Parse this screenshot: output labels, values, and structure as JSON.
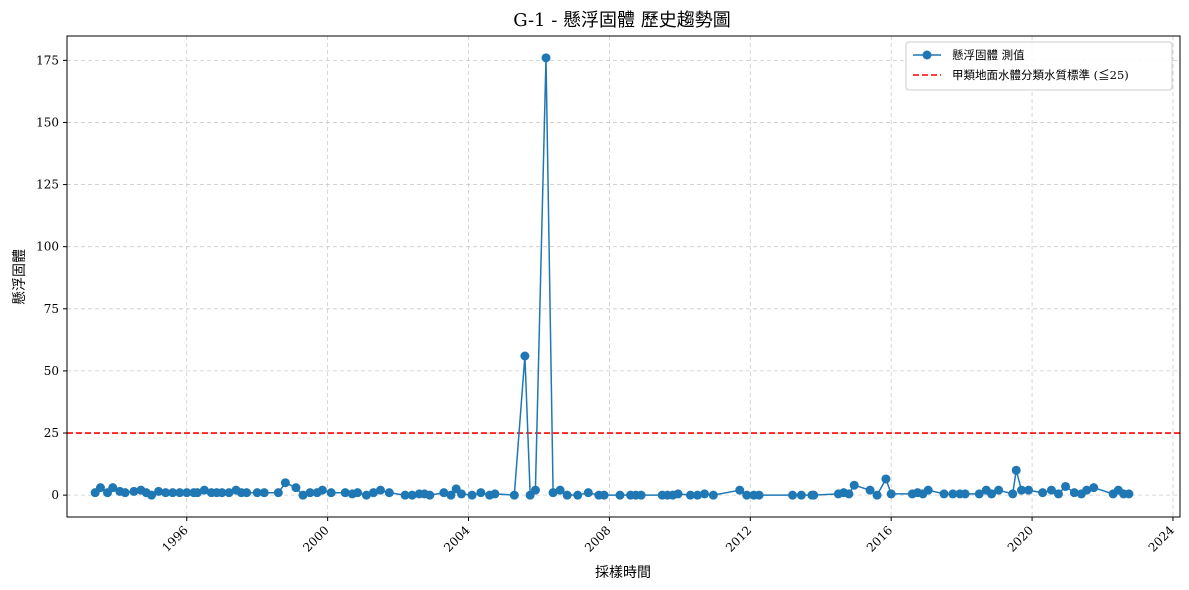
{
  "chart_data": {
    "type": "line",
    "title": "G-1 - 懸浮固體 歷史趨勢圖",
    "xlabel": "採樣時間",
    "ylabel": "懸浮固體",
    "xlim": [
      1992.6,
      2024.2
    ],
    "ylim": [
      -8.8,
      184.8
    ],
    "x_ticks": [
      1996,
      2000,
      2004,
      2008,
      2012,
      2016,
      2020,
      2024
    ],
    "y_ticks": [
      0,
      25,
      50,
      75,
      100,
      125,
      150,
      175
    ],
    "grid": true,
    "legend_position": "top-right",
    "colors": {
      "series": "#1f77b4",
      "threshold": "#ff0000"
    },
    "series": [
      {
        "name": "懸浮固體 測值",
        "x": [
          1993.4,
          1993.55,
          1993.75,
          1993.9,
          1994.1,
          1994.25,
          1994.5,
          1994.7,
          1994.85,
          1995.0,
          1995.2,
          1995.4,
          1995.6,
          1995.8,
          1996.0,
          1996.2,
          1996.3,
          1996.5,
          1996.7,
          1996.85,
          1997.0,
          1997.2,
          1997.4,
          1997.55,
          1997.7,
          1998.0,
          1998.2,
          1998.6,
          1998.8,
          1999.1,
          1999.3,
          1999.5,
          1999.7,
          1999.85,
          2000.1,
          2000.5,
          2000.7,
          2000.85,
          2001.1,
          2001.3,
          2001.5,
          2001.75,
          2002.2,
          2002.4,
          2002.6,
          2002.75,
          2002.9,
          2003.3,
          2003.5,
          2003.65,
          2003.8,
          2004.1,
          2004.35,
          2004.6,
          2004.75,
          2005.3,
          2005.6,
          2005.75,
          2005.9,
          2006.2,
          2006.4,
          2006.6,
          2006.8,
          2007.1,
          2007.4,
          2007.7,
          2007.85,
          2008.3,
          2008.6,
          2008.75,
          2008.9,
          2009.5,
          2009.65,
          2009.8,
          2009.95,
          2010.3,
          2010.5,
          2010.7,
          2010.95,
          2011.7,
          2011.9,
          2012.1,
          2012.25,
          2013.2,
          2013.45,
          2013.75,
          2013.8,
          2014.5,
          2014.65,
          2014.8,
          2014.95,
          2015.4,
          2015.6,
          2015.85,
          2016.0,
          2016.6,
          2016.75,
          2016.9,
          2017.05,
          2017.5,
          2017.75,
          2017.95,
          2018.1,
          2018.5,
          2018.7,
          2018.85,
          2019.05,
          2019.45,
          2019.55,
          2019.7,
          2019.9,
          2020.3,
          2020.55,
          2020.75,
          2020.95,
          2021.2,
          2021.4,
          2021.55,
          2021.75,
          2022.3,
          2022.45,
          2022.6,
          2022.75
        ],
        "y": [
          1,
          3,
          1,
          3,
          1.5,
          1,
          1.5,
          2,
          1,
          0,
          1.5,
          1,
          1,
          1,
          1,
          1,
          1,
          2,
          1,
          1,
          1,
          1,
          2,
          1,
          1,
          1,
          1,
          1,
          5,
          3,
          0,
          1,
          1,
          2,
          1,
          1,
          0.5,
          1,
          0,
          1,
          2,
          1,
          0,
          0,
          0.5,
          0.5,
          0,
          1,
          0,
          2.5,
          0.5,
          0,
          1,
          0,
          0.5,
          0,
          56,
          0,
          2,
          176,
          1,
          2,
          0,
          0,
          1,
          0,
          0,
          0,
          0,
          0,
          0,
          0,
          0,
          0,
          0.5,
          0,
          0,
          0.5,
          0,
          2,
          0,
          0,
          0,
          0,
          0,
          0,
          0,
          0.5,
          1,
          0.5,
          4,
          2,
          0,
          6.5,
          0.5,
          0.5,
          1,
          0.5,
          2,
          0.5,
          0.5,
          0.5,
          0.5,
          0.5,
          2,
          0.5,
          2,
          0.5,
          10,
          2,
          2,
          1,
          2,
          0.5,
          3.5,
          1,
          0.5,
          2,
          3,
          0.5,
          2,
          0.5,
          0.5
        ]
      },
      {
        "name": "甲類地面水體分類水質標準 (≦25)",
        "y_constant": 25,
        "style": "dashed"
      }
    ]
  }
}
